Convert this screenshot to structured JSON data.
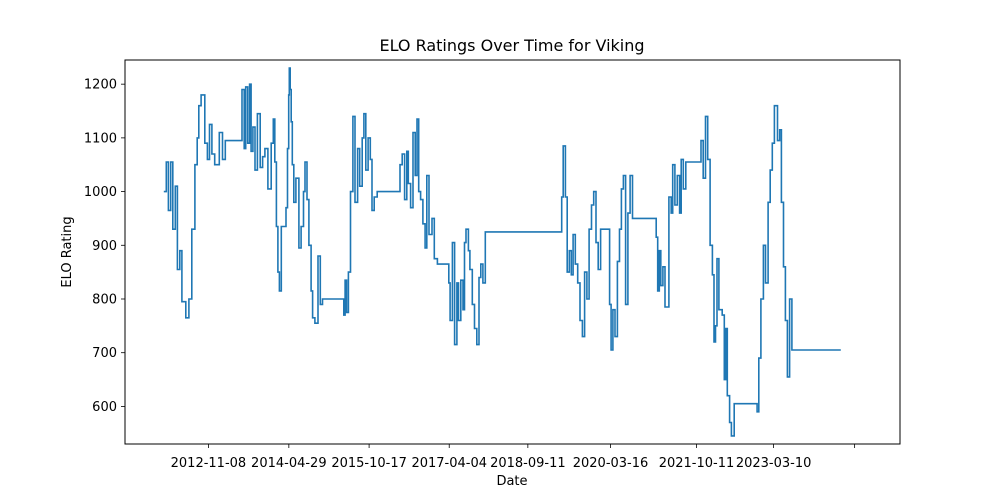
{
  "chart_data": {
    "type": "line",
    "title": "ELO Ratings Over Time for Viking",
    "xlabel": "Date",
    "ylabel": "ELO Rating",
    "x_type": "date",
    "xlim": [
      "2011-05-01",
      "2025-07-01"
    ],
    "ylim": [
      530,
      1245
    ],
    "x_ticks": [
      "2012-11-08",
      "2014-04-29",
      "2015-10-17",
      "2017-04-04",
      "2018-09-11",
      "2020-03-16",
      "2021-10-11",
      "2023-03-10",
      "2024-09-01"
    ],
    "x_tick_labels": [
      "2012-11-08",
      "2014-04-29",
      "2015-10-17",
      "2017-04-04",
      "2018-09-11",
      "2020-03-16",
      "2021-10-11",
      "2023-03-10",
      ""
    ],
    "y_ticks": [
      600,
      700,
      800,
      900,
      1000,
      1100,
      1200
    ],
    "y_tick_labels": [
      "600",
      "700",
      "800",
      "900",
      "1000",
      "1100",
      "1200"
    ],
    "grid": false,
    "series": [
      {
        "color": "#1f77b4",
        "step": true,
        "points": [
          [
            "2012-01-15",
            1000
          ],
          [
            "2012-02-01",
            1055
          ],
          [
            "2012-02-15",
            965
          ],
          [
            "2012-03-01",
            1055
          ],
          [
            "2012-03-15",
            930
          ],
          [
            "2012-04-01",
            1010
          ],
          [
            "2012-04-15",
            855
          ],
          [
            "2012-05-01",
            890
          ],
          [
            "2012-05-15",
            795
          ],
          [
            "2012-06-10",
            765
          ],
          [
            "2012-07-01",
            800
          ],
          [
            "2012-07-20",
            930
          ],
          [
            "2012-08-10",
            1050
          ],
          [
            "2012-08-25",
            1100
          ],
          [
            "2012-09-05",
            1160
          ],
          [
            "2012-09-20",
            1180
          ],
          [
            "2012-10-15",
            1090
          ],
          [
            "2012-11-01",
            1060
          ],
          [
            "2012-11-15",
            1125
          ],
          [
            "2012-12-01",
            1070
          ],
          [
            "2012-12-20",
            1050
          ],
          [
            "2013-01-20",
            1110
          ],
          [
            "2013-02-10",
            1060
          ],
          [
            "2013-03-01",
            1095
          ],
          [
            "2013-06-20",
            1190
          ],
          [
            "2013-07-05",
            1080
          ],
          [
            "2013-07-15",
            1195
          ],
          [
            "2013-07-28",
            1090
          ],
          [
            "2013-08-10",
            1200
          ],
          [
            "2013-08-20",
            1075
          ],
          [
            "2013-09-01",
            1120
          ],
          [
            "2013-09-15",
            1040
          ],
          [
            "2013-10-01",
            1145
          ],
          [
            "2013-10-20",
            1045
          ],
          [
            "2013-11-05",
            1065
          ],
          [
            "2013-11-20",
            1080
          ],
          [
            "2013-12-10",
            1005
          ],
          [
            "2014-01-01",
            1090
          ],
          [
            "2014-01-15",
            1135
          ],
          [
            "2014-01-25",
            1055
          ],
          [
            "2014-02-05",
            935
          ],
          [
            "2014-02-15",
            850
          ],
          [
            "2014-02-25",
            815
          ],
          [
            "2014-03-10",
            935
          ],
          [
            "2014-04-10",
            970
          ],
          [
            "2014-04-20",
            1080
          ],
          [
            "2014-04-28",
            1180
          ],
          [
            "2014-05-02",
            1230
          ],
          [
            "2014-05-08",
            1190
          ],
          [
            "2014-05-15",
            1130
          ],
          [
            "2014-05-22",
            1050
          ],
          [
            "2014-06-01",
            980
          ],
          [
            "2014-06-15",
            1025
          ],
          [
            "2014-07-05",
            895
          ],
          [
            "2014-07-20",
            935
          ],
          [
            "2014-08-05",
            1000
          ],
          [
            "2014-08-15",
            1055
          ],
          [
            "2014-08-28",
            985
          ],
          [
            "2014-09-10",
            900
          ],
          [
            "2014-09-25",
            815
          ],
          [
            "2014-10-05",
            765
          ],
          [
            "2014-10-20",
            755
          ],
          [
            "2014-11-10",
            880
          ],
          [
            "2014-11-25",
            790
          ],
          [
            "2014-12-10",
            800
          ],
          [
            "2015-05-01",
            770
          ],
          [
            "2015-05-10",
            835
          ],
          [
            "2015-05-20",
            775
          ],
          [
            "2015-06-01",
            850
          ],
          [
            "2015-06-15",
            1000
          ],
          [
            "2015-07-01",
            1140
          ],
          [
            "2015-07-15",
            980
          ],
          [
            "2015-08-01",
            1080
          ],
          [
            "2015-08-15",
            1010
          ],
          [
            "2015-09-01",
            1100
          ],
          [
            "2015-09-12",
            1145
          ],
          [
            "2015-09-25",
            1040
          ],
          [
            "2015-10-10",
            1100
          ],
          [
            "2015-10-25",
            1060
          ],
          [
            "2015-11-05",
            965
          ],
          [
            "2015-11-20",
            990
          ],
          [
            "2015-12-10",
            1000
          ],
          [
            "2016-05-10",
            1050
          ],
          [
            "2016-05-25",
            1070
          ],
          [
            "2016-06-10",
            985
          ],
          [
            "2016-06-25",
            1075
          ],
          [
            "2016-07-05",
            1015
          ],
          [
            "2016-07-20",
            970
          ],
          [
            "2016-08-05",
            1110
          ],
          [
            "2016-08-20",
            1030
          ],
          [
            "2016-09-01",
            1135
          ],
          [
            "2016-09-12",
            1000
          ],
          [
            "2016-09-25",
            985
          ],
          [
            "2016-10-10",
            940
          ],
          [
            "2016-10-25",
            895
          ],
          [
            "2016-11-05",
            1030
          ],
          [
            "2016-11-20",
            920
          ],
          [
            "2016-12-10",
            950
          ],
          [
            "2016-12-25",
            875
          ],
          [
            "2017-01-15",
            865
          ],
          [
            "2017-04-01",
            830
          ],
          [
            "2017-04-10",
            760
          ],
          [
            "2017-04-25",
            905
          ],
          [
            "2017-05-10",
            715
          ],
          [
            "2017-05-25",
            830
          ],
          [
            "2017-06-05",
            760
          ],
          [
            "2017-06-20",
            835
          ],
          [
            "2017-07-05",
            780
          ],
          [
            "2017-07-15",
            905
          ],
          [
            "2017-07-25",
            930
          ],
          [
            "2017-08-10",
            890
          ],
          [
            "2017-08-20",
            855
          ],
          [
            "2017-09-05",
            790
          ],
          [
            "2017-09-20",
            745
          ],
          [
            "2017-10-05",
            715
          ],
          [
            "2017-10-20",
            840
          ],
          [
            "2017-11-01",
            865
          ],
          [
            "2017-11-15",
            830
          ],
          [
            "2017-12-01",
            925
          ],
          [
            "2019-04-25",
            990
          ],
          [
            "2019-05-05",
            1085
          ],
          [
            "2019-05-20",
            990
          ],
          [
            "2019-06-01",
            850
          ],
          [
            "2019-06-15",
            890
          ],
          [
            "2019-06-28",
            845
          ],
          [
            "2019-07-10",
            920
          ],
          [
            "2019-07-25",
            865
          ],
          [
            "2019-08-10",
            830
          ],
          [
            "2019-08-25",
            760
          ],
          [
            "2019-09-10",
            730
          ],
          [
            "2019-09-25",
            850
          ],
          [
            "2019-10-10",
            800
          ],
          [
            "2019-10-25",
            930
          ],
          [
            "2019-11-10",
            975
          ],
          [
            "2019-11-25",
            1000
          ],
          [
            "2019-12-10",
            905
          ],
          [
            "2019-12-25",
            855
          ],
          [
            "2020-01-10",
            930
          ],
          [
            "2020-03-10",
            790
          ],
          [
            "2020-03-20",
            705
          ],
          [
            "2020-04-01",
            780
          ],
          [
            "2020-04-15",
            730
          ],
          [
            "2020-05-01",
            870
          ],
          [
            "2020-05-15",
            930
          ],
          [
            "2020-05-28",
            1005
          ],
          [
            "2020-06-10",
            1030
          ],
          [
            "2020-06-25",
            790
          ],
          [
            "2020-07-10",
            960
          ],
          [
            "2020-07-25",
            1030
          ],
          [
            "2020-08-10",
            950
          ],
          [
            "2021-01-15",
            915
          ],
          [
            "2021-01-25",
            815
          ],
          [
            "2021-02-05",
            890
          ],
          [
            "2021-02-15",
            825
          ],
          [
            "2021-03-01",
            860
          ],
          [
            "2021-03-15",
            785
          ],
          [
            "2021-04-10",
            990
          ],
          [
            "2021-04-25",
            960
          ],
          [
            "2021-05-05",
            1050
          ],
          [
            "2021-05-20",
            975
          ],
          [
            "2021-06-05",
            1030
          ],
          [
            "2021-06-20",
            960
          ],
          [
            "2021-07-01",
            1060
          ],
          [
            "2021-07-15",
            1005
          ],
          [
            "2021-08-01",
            1055
          ],
          [
            "2021-11-10",
            1095
          ],
          [
            "2021-11-25",
            1025
          ],
          [
            "2021-12-10",
            1140
          ],
          [
            "2021-12-25",
            1060
          ],
          [
            "2022-01-10",
            900
          ],
          [
            "2022-01-25",
            845
          ],
          [
            "2022-02-05",
            720
          ],
          [
            "2022-02-15",
            750
          ],
          [
            "2022-02-25",
            875
          ],
          [
            "2022-03-10",
            780
          ],
          [
            "2022-04-01",
            770
          ],
          [
            "2022-04-15",
            650
          ],
          [
            "2022-04-25",
            745
          ],
          [
            "2022-05-05",
            620
          ],
          [
            "2022-05-20",
            570
          ],
          [
            "2022-06-01",
            545
          ],
          [
            "2022-06-20",
            605
          ],
          [
            "2022-11-20",
            590
          ],
          [
            "2022-12-01",
            690
          ],
          [
            "2022-12-15",
            800
          ],
          [
            "2023-01-01",
            900
          ],
          [
            "2023-01-15",
            830
          ],
          [
            "2023-02-01",
            980
          ],
          [
            "2023-02-15",
            1040
          ],
          [
            "2023-03-01",
            1090
          ],
          [
            "2023-03-15",
            1160
          ],
          [
            "2023-04-05",
            1095
          ],
          [
            "2023-04-20",
            1115
          ],
          [
            "2023-05-01",
            980
          ],
          [
            "2023-05-15",
            860
          ],
          [
            "2023-05-28",
            760
          ],
          [
            "2023-06-10",
            655
          ],
          [
            "2023-06-25",
            800
          ],
          [
            "2023-07-10",
            705
          ],
          [
            "2024-06-01",
            705
          ]
        ]
      }
    ]
  }
}
